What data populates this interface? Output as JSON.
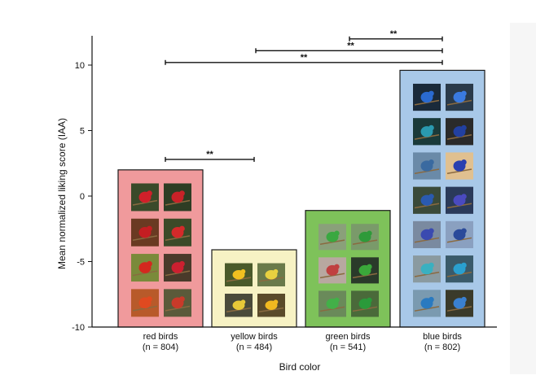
{
  "chart_data": {
    "type": "bar",
    "xlabel": "Bird color",
    "ylabel": "Mean normalized liking score (IAA)",
    "ylim": [
      -10,
      12
    ],
    "yticks": [
      10,
      5,
      0,
      -5,
      -10
    ],
    "ytick_labels": [
      "10",
      "5",
      "0",
      "-5",
      "-10"
    ],
    "categories": [
      "red birds",
      "yellow birds",
      "green birds",
      "blue birds"
    ],
    "sample_sizes": [
      "(n = 804)",
      "(n = 484)",
      "(n = 541)",
      "(n = 802)"
    ],
    "values": [
      2.0,
      -4.1,
      -1.1,
      9.6
    ],
    "bar_colors": [
      "#f09a9c",
      "#f7f2c4",
      "#7ec25a",
      "#a8c8e8"
    ],
    "photo_grid": [
      {
        "cols": 2,
        "rows": 4,
        "photo_colors": [
          "#3a4a2a",
          "#2e3d24",
          "#6a3a22",
          "#3c4a28",
          "#7a8a3a",
          "#4a3a2a",
          "#b85a2a",
          "#5a5a3a"
        ],
        "subject_colors": [
          "#d0202a",
          "#c82228",
          "#c41e22",
          "#d42a2a",
          "#d4281e",
          "#cc2030",
          "#e04a20",
          "#c83a2a"
        ]
      },
      {
        "cols": 2,
        "rows": 2,
        "photo_colors": [
          "#4a5a2a",
          "#6a7a4a",
          "#4a4a3a",
          "#5a4a2a"
        ],
        "subject_colors": [
          "#f0c020",
          "#e8d040",
          "#e8c838",
          "#f0b820"
        ]
      },
      {
        "cols": 2,
        "rows": 3,
        "photo_colors": [
          "#8aa07a",
          "#7a9a6a",
          "#b8a8a0",
          "#2a3a2a",
          "#6a8a5a",
          "#4a6a3a"
        ],
        "subject_colors": [
          "#3aa840",
          "#2e9a3a",
          "#c04040",
          "#3aa83a",
          "#42b048",
          "#2a9a3a"
        ]
      },
      {
        "cols": 2,
        "rows": 7,
        "photo_colors": [
          "#1a2a3a",
          "#2a3a4a",
          "#1a3a3a",
          "#2a2a2a",
          "#6a8aa8",
          "#e0c090",
          "#3a4a3a",
          "#2a3a5a",
          "#7a8aa0",
          "#8aa0c0",
          "#8a9aa0",
          "#3a5a6a",
          "#7a9ab0",
          "#3a3a2a"
        ],
        "subject_colors": [
          "#2a6ad0",
          "#3a7ae0",
          "#2a9ab0",
          "#2240a0",
          "#3a6aa0",
          "#2a40b0",
          "#2a5ab0",
          "#4a4ac0",
          "#3a4ab0",
          "#2a4a9a",
          "#3ab0c0",
          "#2aa0d0",
          "#2a7ac0",
          "#3a80d0"
        ]
      }
    ],
    "significance": [
      {
        "from": 2,
        "to": 3,
        "level": 12.0,
        "label": "**"
      },
      {
        "from": 1,
        "to": 3,
        "level": 11.1,
        "label": "**"
      },
      {
        "from": 0,
        "to": 3,
        "level": 10.2,
        "label": "**"
      },
      {
        "from": 0,
        "to": 1,
        "level": 2.8,
        "label": "**"
      }
    ]
  }
}
